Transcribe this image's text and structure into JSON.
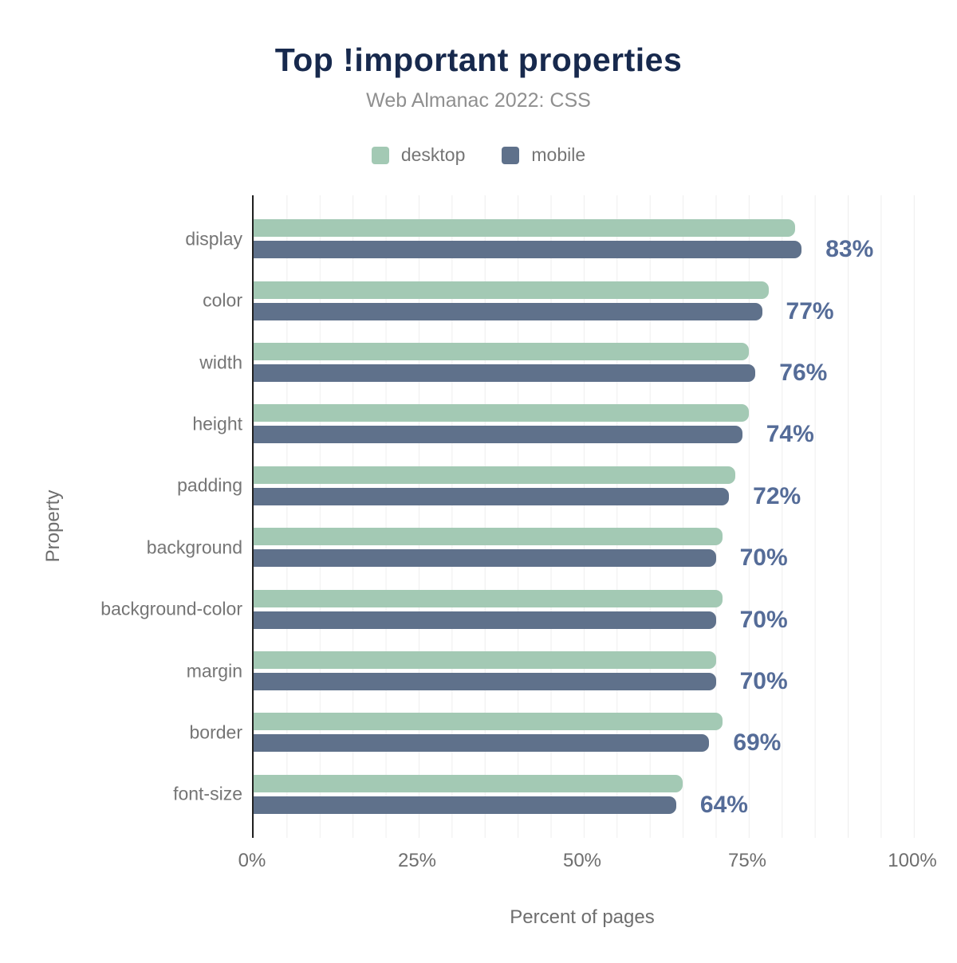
{
  "header": {
    "title": "Top !important properties",
    "subtitle": "Web Almanac 2022: CSS"
  },
  "legend": {
    "items": [
      {
        "label": "desktop",
        "color": "#a3c9b4"
      },
      {
        "label": "mobile",
        "color": "#5f718b"
      }
    ]
  },
  "chart_data": {
    "type": "bar",
    "orientation": "horizontal",
    "title": "Top !important properties",
    "subtitle": "Web Almanac 2022: CSS",
    "xlabel": "Percent of pages",
    "ylabel": "Property",
    "xlim": [
      0,
      105
    ],
    "grid": "vertical, every 5%",
    "legend_position": "top",
    "categories": [
      "display",
      "color",
      "width",
      "height",
      "padding",
      "background",
      "background-color",
      "margin",
      "border",
      "font-size"
    ],
    "series": [
      {
        "name": "desktop",
        "color": "#a3c9b4",
        "values": [
          82,
          78,
          75,
          75,
          73,
          71,
          71,
          70,
          71,
          65
        ]
      },
      {
        "name": "mobile",
        "color": "#5f718b",
        "values": [
          83,
          77,
          76,
          74,
          72,
          70,
          70,
          70,
          69,
          64
        ]
      }
    ],
    "value_labels": [
      "83%",
      "77%",
      "76%",
      "74%",
      "72%",
      "70%",
      "70%",
      "70%",
      "69%",
      "64%"
    ],
    "xticks": [
      {
        "value": 0,
        "label": "0%"
      },
      {
        "value": 25,
        "label": "25%"
      },
      {
        "value": 50,
        "label": "50%"
      },
      {
        "value": 75,
        "label": "75%"
      },
      {
        "value": 100,
        "label": "100%"
      }
    ]
  },
  "colors": {
    "title": "#17294d",
    "subtitle": "#8f8f8f",
    "axis_text": "#6e6e6e",
    "category_text": "#757575",
    "value_label": "#556c98",
    "gridline": "#eeeeee",
    "axis_line": "#212121",
    "background": "#ffffff"
  }
}
